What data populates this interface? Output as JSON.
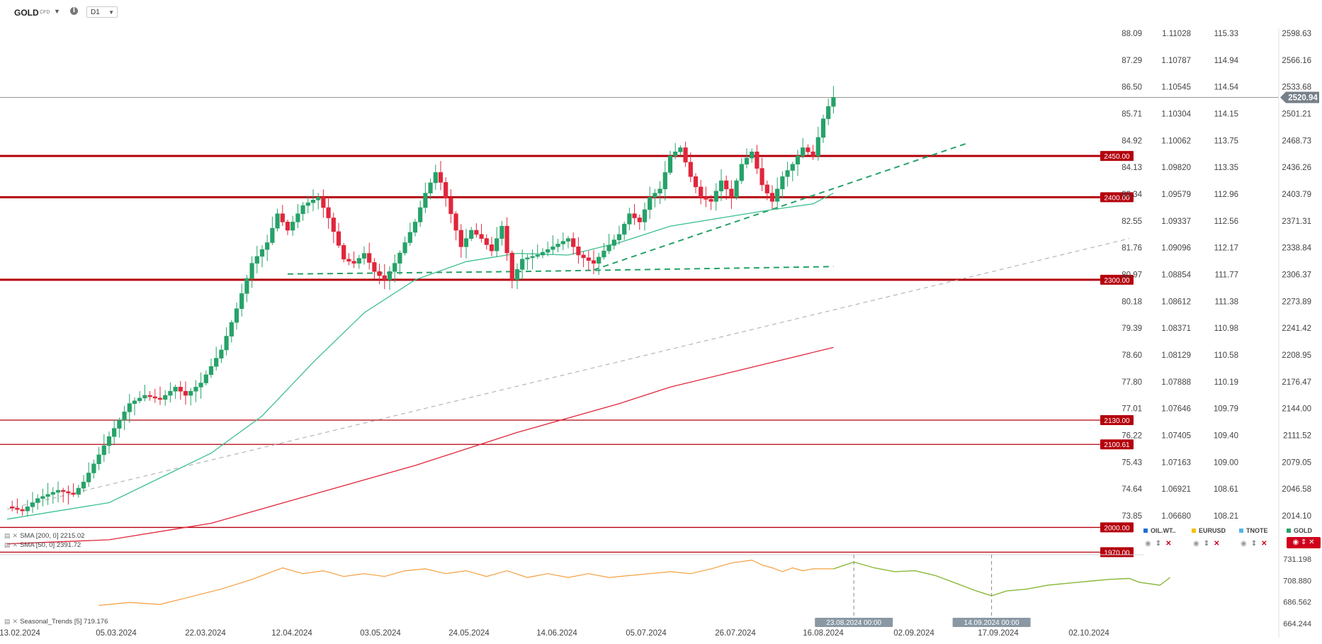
{
  "header": {
    "symbol": "GOLD",
    "symbol_type": "CFD",
    "timeframe": "D1",
    "caret_icon": "chevron-down-icon",
    "info_icon": "info-icon"
  },
  "indicators": {
    "sma200_label": "SMA [200, 0]",
    "sma200_value": "2215.02",
    "sma50_label": "SMA [50, 0]",
    "sma50_value": "2391.72",
    "seasonal_label": "Seasonal_Trends [5]",
    "seasonal_value": "719.176"
  },
  "compare": {
    "items": [
      {
        "name": "OIL.WT..",
        "color": "#1e6fd6"
      },
      {
        "name": "EURUSD",
        "color": "#f2c200"
      },
      {
        "name": "TNOTE",
        "color": "#55b3e6"
      },
      {
        "name": "GOLD",
        "color": "#26a269"
      }
    ]
  },
  "colors": {
    "up": "#26a269",
    "down": "#e0263b",
    "level": "#b4000c",
    "sma50": "#3cbf8f",
    "sma200": "#e0263b",
    "trend": "#26a269",
    "seasonal_hist": "#f59e3f",
    "seasonal_proj": "#8ab83a"
  },
  "chart_data": {
    "type": "candlestick",
    "instrument": "GOLD CFD",
    "timeframe": "D1",
    "price_axis": {
      "range": [
        1990,
        2620
      ],
      "ticks": [
        "2598.63",
        "2566.16",
        "2533.68",
        "2501.21",
        "2468.73",
        "2436.26",
        "2403.79",
        "2371.31",
        "2338.84",
        "2306.37",
        "2273.89",
        "2241.42",
        "2208.95",
        "2176.47",
        "2144.00",
        "2111.52",
        "2079.05",
        "2046.58",
        "2014.10"
      ]
    },
    "comparison_axes": [
      {
        "name": "OIL.WT..",
        "ticks": [
          "88.09",
          "87.29",
          "86.50",
          "85.71",
          "84.92",
          "84.13",
          "83.34",
          "82.55",
          "81.76",
          "80.97",
          "80.18",
          "79.39",
          "78.60",
          "77.80",
          "77.01",
          "76.22",
          "75.43",
          "74.64",
          "73.85"
        ]
      },
      {
        "name": "EURUSD",
        "ticks": [
          "1.11028",
          "1.10787",
          "1.10545",
          "1.10304",
          "1.10062",
          "1.09820",
          "1.09579",
          "1.09337",
          "1.09096",
          "1.08854",
          "1.08612",
          "1.08371",
          "1.08129",
          "1.07888",
          "1.07646",
          "1.07405",
          "1.07163",
          "1.06921",
          "1.06680"
        ]
      },
      {
        "name": "TNOTE",
        "ticks": [
          "115.33",
          "114.94",
          "114.54",
          "114.15",
          "113.75",
          "113.35",
          "112.96",
          "112.56",
          "112.17",
          "111.77",
          "111.38",
          "110.98",
          "110.58",
          "110.19",
          "109.79",
          "109.40",
          "109.00",
          "108.61",
          "108.21"
        ]
      }
    ],
    "x_ticks": [
      "13.02.2024",
      "05.03.2024",
      "22.03.2024",
      "12.04.2024",
      "03.05.2024",
      "24.05.2024",
      "14.06.2024",
      "05.07.2024",
      "26.07.2024",
      "16.08.2024",
      "02.09.2024",
      "17.09.2024",
      "02.10.2024"
    ],
    "last_price": "2520.94",
    "levels": [
      {
        "label": "2450.00",
        "value": 2450.0,
        "style": "bold"
      },
      {
        "label": "2400.00",
        "value": 2400.0,
        "style": "bold"
      },
      {
        "label": "2300.00",
        "value": 2300.0,
        "style": "bold"
      },
      {
        "label": "2130.00",
        "value": 2130.0,
        "style": "thin"
      },
      {
        "label": "2100.61",
        "value": 2100.61,
        "style": "thin"
      },
      {
        "label": "2000.00",
        "value": 2000.0,
        "style": "thin"
      },
      {
        "label": "1970.00",
        "value": 1970.0,
        "style": "thin"
      }
    ],
    "waypoints": [
      [
        0,
        2025
      ],
      [
        3,
        2020
      ],
      [
        6,
        2035
      ],
      [
        10,
        2045
      ],
      [
        13,
        2040
      ],
      [
        15,
        2055
      ],
      [
        20,
        2110
      ],
      [
        24,
        2150
      ],
      [
        27,
        2160
      ],
      [
        30,
        2155
      ],
      [
        33,
        2170
      ],
      [
        35,
        2160
      ],
      [
        38,
        2175
      ],
      [
        42,
        2215
      ],
      [
        45,
        2265
      ],
      [
        48,
        2320
      ],
      [
        51,
        2345
      ],
      [
        53,
        2380
      ],
      [
        55,
        2360
      ],
      [
        58,
        2390
      ],
      [
        61,
        2400
      ],
      [
        63,
        2375
      ],
      [
        66,
        2325
      ],
      [
        68,
        2320
      ],
      [
        70,
        2332
      ],
      [
        72,
        2310
      ],
      [
        74,
        2300
      ],
      [
        76,
        2320
      ],
      [
        78,
        2345
      ],
      [
        80,
        2370
      ],
      [
        82,
        2405
      ],
      [
        84,
        2430
      ],
      [
        85,
        2418
      ],
      [
        87,
        2380
      ],
      [
        89,
        2340
      ],
      [
        91,
        2360
      ],
      [
        93,
        2350
      ],
      [
        95,
        2335
      ],
      [
        97,
        2365
      ],
      [
        99,
        2300
      ],
      [
        101,
        2325
      ],
      [
        104,
        2330
      ],
      [
        107,
        2340
      ],
      [
        110,
        2350
      ],
      [
        112,
        2330
      ],
      [
        115,
        2320
      ],
      [
        117,
        2335
      ],
      [
        120,
        2355
      ],
      [
        122,
        2380
      ],
      [
        124,
        2370
      ],
      [
        126,
        2400
      ],
      [
        128,
        2410
      ],
      [
        130,
        2450
      ],
      [
        132,
        2460
      ],
      [
        134,
        2425
      ],
      [
        136,
        2400
      ],
      [
        138,
        2395
      ],
      [
        140,
        2420
      ],
      [
        142,
        2400
      ],
      [
        144,
        2440
      ],
      [
        146,
        2455
      ],
      [
        148,
        2415
      ],
      [
        150,
        2395
      ],
      [
        152,
        2425
      ],
      [
        154,
        2440
      ],
      [
        156,
        2460
      ],
      [
        158,
        2450
      ],
      [
        160,
        2495
      ],
      [
        161,
        2510
      ],
      [
        162,
        2521
      ]
    ],
    "sma50": [
      [
        0,
        2010
      ],
      [
        20,
        2030
      ],
      [
        40,
        2090
      ],
      [
        50,
        2135
      ],
      [
        60,
        2200
      ],
      [
        70,
        2260
      ],
      [
        80,
        2300
      ],
      [
        90,
        2322
      ],
      [
        100,
        2332
      ],
      [
        110,
        2330
      ],
      [
        120,
        2345
      ],
      [
        130,
        2365
      ],
      [
        140,
        2375
      ],
      [
        150,
        2385
      ],
      [
        158,
        2392
      ],
      [
        162,
        2405
      ]
    ],
    "sma200": [
      [
        0,
        1980
      ],
      [
        20,
        1985
      ],
      [
        40,
        2005
      ],
      [
        60,
        2040
      ],
      [
        80,
        2075
      ],
      [
        100,
        2115
      ],
      [
        120,
        2150
      ],
      [
        130,
        2170
      ],
      [
        140,
        2185
      ],
      [
        150,
        2200
      ],
      [
        162,
        2218
      ]
    ],
    "trendlines": [
      {
        "name": "support-lower",
        "points": [
          [
            55,
            2307
          ],
          [
            100,
            2310
          ],
          [
            162,
            2316
          ]
        ]
      },
      {
        "name": "support-rising",
        "points": [
          [
            115,
            2312
          ],
          [
            188,
            2465
          ]
        ]
      },
      {
        "name": "long-term",
        "points": [
          [
            0,
            2022
          ],
          [
            220,
            2350
          ]
        ]
      }
    ],
    "seasonal": {
      "label": "Seasonal_Trends [5]",
      "value": "719.176",
      "ticks": [
        "731.198",
        "708.880",
        "686.562",
        "664.244"
      ],
      "range": [
        664.244,
        731.198
      ],
      "markers": [
        "23.08.2024 00:00",
        "14.09.2024 00:00"
      ],
      "history": [
        [
          18,
          683
        ],
        [
          24,
          686
        ],
        [
          30,
          684
        ],
        [
          36,
          692
        ],
        [
          42,
          700
        ],
        [
          48,
          710
        ],
        [
          52,
          718
        ],
        [
          54,
          722
        ],
        [
          58,
          716
        ],
        [
          62,
          719
        ],
        [
          66,
          713
        ],
        [
          70,
          716
        ],
        [
          74,
          713
        ],
        [
          78,
          719
        ],
        [
          82,
          721
        ],
        [
          86,
          716
        ],
        [
          90,
          719
        ],
        [
          94,
          713
        ],
        [
          98,
          719
        ],
        [
          102,
          712
        ],
        [
          106,
          716
        ],
        [
          110,
          712
        ],
        [
          114,
          716
        ],
        [
          118,
          712
        ],
        [
          122,
          714
        ],
        [
          126,
          716
        ],
        [
          130,
          718
        ],
        [
          134,
          716
        ],
        [
          138,
          721
        ],
        [
          142,
          727
        ],
        [
          146,
          730
        ],
        [
          148,
          725
        ],
        [
          150,
          722
        ],
        [
          152,
          718
        ],
        [
          154,
          722
        ],
        [
          156,
          719
        ],
        [
          158,
          721
        ],
        [
          162,
          721
        ]
      ],
      "projection": [
        [
          162,
          721
        ],
        [
          166,
          728
        ],
        [
          170,
          722
        ],
        [
          174,
          718
        ],
        [
          178,
          719
        ],
        [
          182,
          714
        ],
        [
          186,
          706
        ],
        [
          190,
          698
        ],
        [
          193,
          693
        ],
        [
          196,
          698
        ],
        [
          200,
          700
        ],
        [
          204,
          704
        ],
        [
          208,
          706
        ],
        [
          212,
          708
        ],
        [
          216,
          710
        ],
        [
          220,
          711
        ],
        [
          222,
          707
        ],
        [
          226,
          704
        ],
        [
          228,
          712
        ]
      ]
    }
  }
}
